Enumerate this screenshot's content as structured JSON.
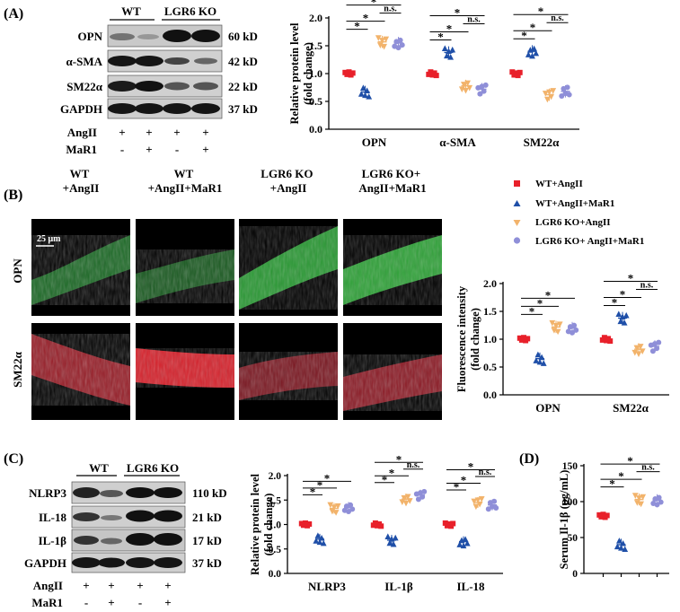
{
  "colors": {
    "wt_angii": "#e8202a",
    "wt_angii_mar1": "#1f4fa8",
    "ko_angii": "#f2b36b",
    "ko_angii_mar1": "#8f8fd8"
  },
  "panel_a": {
    "label": "(A)",
    "groups": [
      "WT",
      "LGR6 KO"
    ],
    "bands": [
      {
        "name": "OPN",
        "kd": "60 kD"
      },
      {
        "name": "α-SMA",
        "kd": "42 kD"
      },
      {
        "name": "SM22α",
        "kd": "22 kD"
      },
      {
        "name": "GAPDH",
        "kd": "37 kD"
      }
    ],
    "treat_rows": [
      {
        "name": "AngII",
        "signs": [
          "+",
          "+",
          "+",
          "+"
        ]
      },
      {
        "name": "MaR1",
        "signs": [
          "-",
          "+",
          "-",
          "+"
        ]
      }
    ]
  },
  "panel_b": {
    "label": "(B)",
    "columns": [
      "WT\n+AngII",
      "WT\n+AngII+MaR1",
      "LGR6 KO\n+AngII",
      "LGR6 KO+\nAngII+MaR1"
    ],
    "rows": [
      "OPN",
      "SM22α"
    ],
    "scale_bar": "25 μm",
    "legend": [
      "WT+AngII",
      "WT+AngII+MaR1",
      "LGR6 KO+AngII",
      "LGR6 KO+ AngII+MaR1"
    ]
  },
  "panel_c": {
    "label": "(C)",
    "groups": [
      "WT",
      "LGR6 KO"
    ],
    "bands": [
      {
        "name": "NLRP3",
        "kd": "110 kD"
      },
      {
        "name": "IL-18",
        "kd": "21 kD"
      },
      {
        "name": "IL-1β",
        "kd": "17 kD"
      },
      {
        "name": "GAPDH",
        "kd": "37 kD"
      }
    ],
    "treat_rows": [
      {
        "name": "AngII",
        "signs": [
          "+",
          "+",
          "+",
          "+"
        ]
      },
      {
        "name": "MaR1",
        "signs": [
          "-",
          "+",
          "-",
          "+"
        ]
      }
    ]
  },
  "panel_d": {
    "label": "(D)"
  },
  "significance": {
    "star": "*",
    "ns": "n.s."
  },
  "chart_data": [
    {
      "id": "A",
      "type": "scatter",
      "ylabel": "Relative protein level\n(fold change)",
      "ylim": [
        0,
        2.0
      ],
      "yticks": [
        "0.0",
        "0.5",
        "1.0",
        "1.5",
        "2.0"
      ],
      "categories": [
        "OPN",
        "α-SMA",
        "SM22α"
      ],
      "series": [
        {
          "name": "WT+AngII",
          "values": [
            1.0,
            1.0,
            1.0
          ]
        },
        {
          "name": "WT+AngII+MaR1",
          "values": [
            0.67,
            1.38,
            1.4
          ]
        },
        {
          "name": "LGR6 KO+AngII",
          "values": [
            1.57,
            0.78,
            0.62
          ]
        },
        {
          "name": "LGR6 KO+ AngII+MaR1",
          "values": [
            1.55,
            0.72,
            0.68
          ]
        }
      ],
      "brackets": [
        {
          "cat": 0,
          "from": 0,
          "to": 1,
          "label": "*"
        },
        {
          "cat": 0,
          "from": 0,
          "to": 2,
          "label": "*"
        },
        {
          "cat": 0,
          "from": 2,
          "to": 3,
          "label": "n.s."
        },
        {
          "cat": 0,
          "from": 0,
          "to": 3,
          "label": "*"
        },
        {
          "cat": 1,
          "from": 0,
          "to": 1,
          "label": "*"
        },
        {
          "cat": 1,
          "from": 0,
          "to": 2,
          "label": "*"
        },
        {
          "cat": 1,
          "from": 2,
          "to": 3,
          "label": "n.s."
        },
        {
          "cat": 1,
          "from": 0,
          "to": 3,
          "label": "*"
        },
        {
          "cat": 2,
          "from": 0,
          "to": 1,
          "label": "*"
        },
        {
          "cat": 2,
          "from": 0,
          "to": 2,
          "label": "*"
        },
        {
          "cat": 2,
          "from": 2,
          "to": 3,
          "label": "n.s."
        },
        {
          "cat": 2,
          "from": 0,
          "to": 3,
          "label": "*"
        }
      ]
    },
    {
      "id": "B",
      "type": "scatter",
      "ylabel": "Fluorescence intensity\n(fold change)",
      "ylim": [
        0,
        2.0
      ],
      "yticks": [
        "0.0",
        "0.5",
        "1.0",
        "1.5",
        "2.0"
      ],
      "categories": [
        "OPN",
        "SM22α"
      ],
      "series": [
        {
          "name": "WT+AngII",
          "values": [
            1.0,
            1.0
          ]
        },
        {
          "name": "WT+AngII+MaR1",
          "values": [
            0.65,
            1.38
          ]
        },
        {
          "name": "LGR6 KO+AngII",
          "values": [
            1.22,
            0.82
          ]
        },
        {
          "name": "LGR6 KO+ AngII+MaR1",
          "values": [
            1.2,
            0.87
          ]
        }
      ],
      "brackets": [
        {
          "cat": 0,
          "from": 0,
          "to": 1,
          "label": "*"
        },
        {
          "cat": 0,
          "from": 0,
          "to": 2,
          "label": "*"
        },
        {
          "cat": 0,
          "from": 0,
          "to": 3,
          "label": "*"
        },
        {
          "cat": 1,
          "from": 0,
          "to": 1,
          "label": "*"
        },
        {
          "cat": 1,
          "from": 0,
          "to": 2,
          "label": "*"
        },
        {
          "cat": 1,
          "from": 2,
          "to": 3,
          "label": "n.s."
        },
        {
          "cat": 1,
          "from": 0,
          "to": 3,
          "label": "*"
        }
      ]
    },
    {
      "id": "C",
      "type": "scatter",
      "ylabel": "Relative protein level\n(fold change)",
      "ylim": [
        0,
        2.0
      ],
      "yticks": [
        "0.0",
        "0.5",
        "1.0",
        "1.5",
        "2.0"
      ],
      "categories": [
        "NLRP3",
        "IL-1β",
        "IL-18"
      ],
      "series": [
        {
          "name": "WT+AngII",
          "values": [
            1.0,
            1.0,
            1.0
          ]
        },
        {
          "name": "WT+AngII+MaR1",
          "values": [
            0.7,
            0.68,
            0.65
          ]
        },
        {
          "name": "LGR6 KO+AngII",
          "values": [
            1.33,
            1.52,
            1.45
          ]
        },
        {
          "name": "LGR6 KO+ AngII+MaR1",
          "values": [
            1.35,
            1.6,
            1.4
          ]
        }
      ],
      "brackets": [
        {
          "cat": 0,
          "from": 0,
          "to": 1,
          "label": "*"
        },
        {
          "cat": 0,
          "from": 0,
          "to": 2,
          "label": "*"
        },
        {
          "cat": 0,
          "from": 0,
          "to": 3,
          "label": "*"
        },
        {
          "cat": 1,
          "from": 0,
          "to": 1,
          "label": "*"
        },
        {
          "cat": 1,
          "from": 0,
          "to": 2,
          "label": "*"
        },
        {
          "cat": 1,
          "from": 2,
          "to": 3,
          "label": "n.s."
        },
        {
          "cat": 1,
          "from": 0,
          "to": 3,
          "label": "*"
        },
        {
          "cat": 2,
          "from": 0,
          "to": 1,
          "label": "*"
        },
        {
          "cat": 2,
          "from": 0,
          "to": 2,
          "label": "*"
        },
        {
          "cat": 2,
          "from": 2,
          "to": 3,
          "label": "n.s."
        },
        {
          "cat": 2,
          "from": 0,
          "to": 3,
          "label": "*"
        }
      ]
    },
    {
      "id": "D",
      "type": "scatter",
      "ylabel": "Serum Il-1β (pg/mL)",
      "ylim": [
        0,
        150
      ],
      "yticks": [
        "0",
        "50",
        "100",
        "150"
      ],
      "categories": [
        ""
      ],
      "series": [
        {
          "name": "WT+AngII",
          "values": [
            80
          ]
        },
        {
          "name": "WT+AngII+MaR1",
          "values": [
            40
          ]
        },
        {
          "name": "LGR6 KO+AngII",
          "values": [
            103
          ]
        },
        {
          "name": "LGR6 KO+ AngII+MaR1",
          "values": [
            102
          ]
        }
      ],
      "brackets": [
        {
          "cat": 0,
          "from": 0,
          "to": 1,
          "label": "*"
        },
        {
          "cat": 0,
          "from": 0,
          "to": 2,
          "label": "*"
        },
        {
          "cat": 0,
          "from": 2,
          "to": 3,
          "label": "n.s."
        },
        {
          "cat": 0,
          "from": 0,
          "to": 3,
          "label": "*"
        }
      ]
    }
  ]
}
